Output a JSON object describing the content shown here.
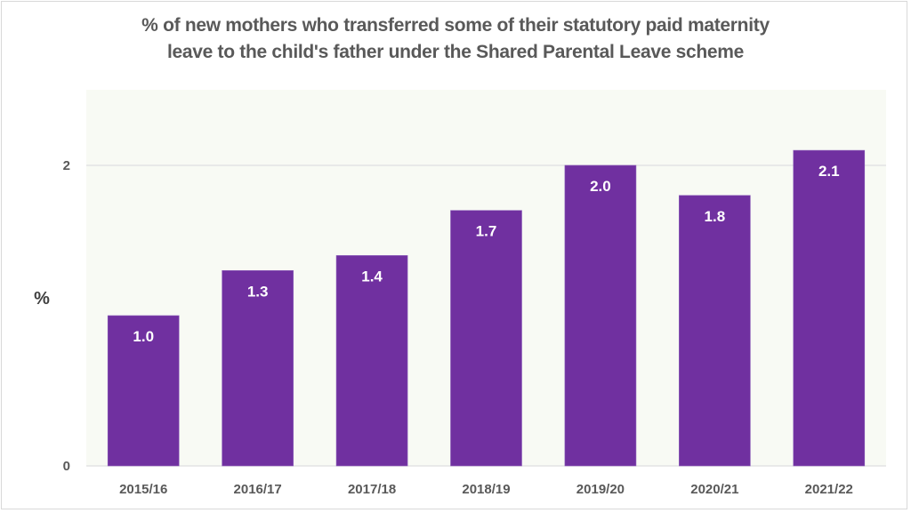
{
  "chart_data": {
    "type": "bar",
    "title_lines": [
      "% of new mothers who transferred some of their statutory paid maternity",
      "leave to the child's father under the Shared Parental Leave scheme"
    ],
    "xlabel": "",
    "ylabel": "%",
    "categories": [
      "2015/16",
      "2016/17",
      "2017/18",
      "2018/19",
      "2019/20",
      "2020/21",
      "2021/22"
    ],
    "values": [
      1.0,
      1.3,
      1.4,
      1.7,
      2.0,
      1.8,
      2.1
    ],
    "data_labels": [
      "1.0",
      "1.3",
      "1.4",
      "1.7",
      "2.0",
      "1.8",
      "2.1"
    ],
    "yticks": [
      0,
      2
    ],
    "ytick_labels": [
      "0",
      "2"
    ],
    "ylim": [
      0,
      2.5
    ],
    "grid": "horizontal",
    "legend": "none",
    "colors": {
      "bar": "#7030a0",
      "plot_background": "#f8faf4",
      "gridline": "#e3e3e3",
      "text": "#595959"
    }
  }
}
